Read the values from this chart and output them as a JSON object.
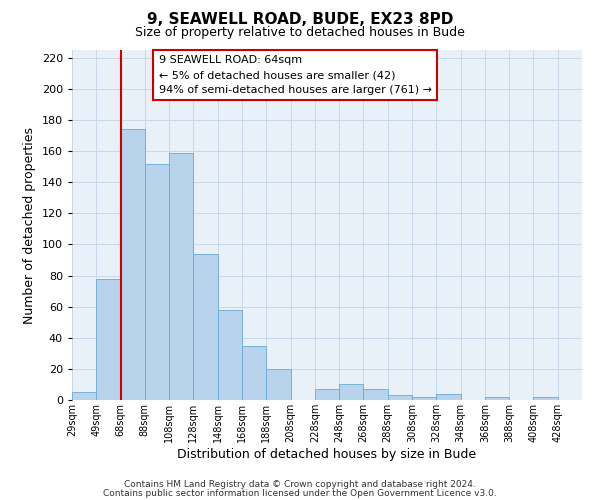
{
  "title": "9, SEAWELL ROAD, BUDE, EX23 8PD",
  "subtitle": "Size of property relative to detached houses in Bude",
  "xlabel": "Distribution of detached houses by size in Bude",
  "ylabel": "Number of detached properties",
  "bar_labels": [
    "29sqm",
    "49sqm",
    "68sqm",
    "88sqm",
    "108sqm",
    "128sqm",
    "148sqm",
    "168sqm",
    "188sqm",
    "208sqm",
    "228sqm",
    "248sqm",
    "268sqm",
    "288sqm",
    "308sqm",
    "328sqm",
    "348sqm",
    "368sqm",
    "388sqm",
    "408sqm",
    "428sqm"
  ],
  "bar_values": [
    5,
    78,
    174,
    152,
    159,
    94,
    58,
    35,
    20,
    0,
    7,
    10,
    7,
    3,
    2,
    4,
    0,
    2,
    0,
    2,
    0
  ],
  "bar_color": "#b8d4ed",
  "bar_edge_color": "#6aaad4",
  "property_line_idx": 2,
  "property_line_color": "#cc0000",
  "ylim": [
    0,
    225
  ],
  "yticks": [
    0,
    20,
    40,
    60,
    80,
    100,
    120,
    140,
    160,
    180,
    200,
    220
  ],
  "annotation_title": "9 SEAWELL ROAD: 64sqm",
  "annotation_line1": "← 5% of detached houses are smaller (42)",
  "annotation_line2": "94% of semi-detached houses are larger (761) →",
  "annotation_box_color": "#ffffff",
  "annotation_box_edge": "#cc0000",
  "footer_line1": "Contains HM Land Registry data © Crown copyright and database right 2024.",
  "footer_line2": "Contains public sector information licensed under the Open Government Licence v3.0.",
  "background_color": "#ffffff",
  "grid_color": "#c8d8e8"
}
